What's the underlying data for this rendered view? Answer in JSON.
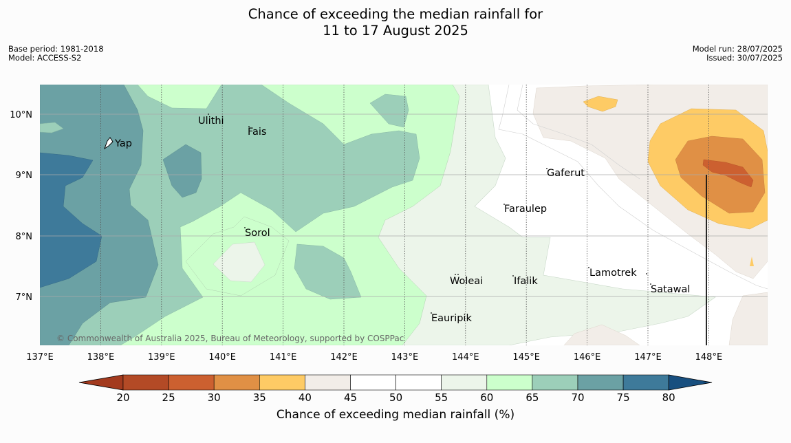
{
  "title": {
    "line1": "Chance of exceeding the median rainfall for",
    "line2": "11 to 17 August 2025"
  },
  "meta_left": {
    "base_period": "Base period: 1981-2018",
    "model": "Model: ACCESS-S2"
  },
  "meta_right": {
    "model_run": "Model run: 28/07/2025",
    "issued": "Issued: 30/07/2025"
  },
  "map": {
    "lon_labels": [
      "137°E",
      "138°E",
      "139°E",
      "140°E",
      "141°E",
      "142°E",
      "143°E",
      "144°E",
      "145°E",
      "146°E",
      "147°E",
      "148°E"
    ],
    "lat_labels": [
      "10°N",
      "9°N",
      "8°N",
      "7°N"
    ],
    "places": [
      "Ulithi",
      "Fais",
      "Yap",
      "Gaferut",
      "Faraulep",
      "Sorol",
      "Lamotrek",
      "Woleai",
      "Ifalik",
      "Satawal",
      "Eauripik"
    ],
    "copyright": "© Commonwealth of Australia 2025, Bureau of Meteorology, supported by COSPPac",
    "colors": {
      "c20": "#b34a26",
      "c25": "#cc6030",
      "c30": "#e09045",
      "c35": "#fecb65",
      "c40": "#f2ede8",
      "c45": "#ffffff",
      "c50": "#ffffff",
      "c55": "#ecf5ea",
      "c60": "#ccffcc",
      "c65": "#9ccfb9",
      "c70": "#6ba1a4",
      "c75": "#3e7a9a",
      "low": "#a33a1e",
      "high": "#184f7f"
    }
  },
  "colorbar": {
    "ticks": [
      "20",
      "25",
      "30",
      "35",
      "40",
      "45",
      "50",
      "55",
      "60",
      "65",
      "70",
      "75",
      "80"
    ],
    "label": "Chance of exceeding median rainfall (%)"
  }
}
